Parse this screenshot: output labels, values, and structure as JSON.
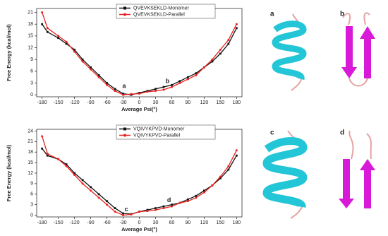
{
  "chart_data": [
    {
      "type": "line",
      "x_label": "Average Psi(°)",
      "y_label": "Free Energy (kcal/mol)",
      "x": [
        -180,
        -170,
        -150,
        -135,
        -120,
        -105,
        -90,
        -75,
        -60,
        -45,
        -30,
        -15,
        0,
        15,
        30,
        45,
        60,
        75,
        90,
        105,
        120,
        135,
        150,
        165,
        180
      ],
      "series": [
        {
          "name": "QVEVKSEKLD-Monomer",
          "color": "#111111",
          "marker": "square",
          "values": [
            18,
            16,
            14.5,
            13,
            11.5,
            9,
            7,
            5,
            3,
            1.5,
            0.3,
            0,
            0.5,
            1,
            1.5,
            2,
            2.5,
            3.5,
            4.5,
            5.5,
            7,
            8.5,
            10.5,
            13,
            17
          ]
        },
        {
          "name": "QVEVKSEKLD-Parallel",
          "color": "#e8211f",
          "marker": "circle",
          "values": [
            21,
            17,
            15,
            13.5,
            11,
            8.5,
            6.5,
            4.5,
            2.5,
            1,
            0,
            0.2,
            0.3,
            0.8,
            1,
            1.3,
            2,
            3,
            4,
            5,
            7,
            9,
            11.5,
            14,
            18
          ]
        }
      ],
      "annotations": [
        "a",
        "b"
      ],
      "xlim": [
        -190,
        190
      ],
      "ylim": [
        -0.5,
        22
      ],
      "xticks": [
        -180,
        -150,
        -120,
        -90,
        -60,
        -30,
        0,
        30,
        60,
        90,
        120,
        150,
        180
      ],
      "yticks": [
        0,
        3,
        6,
        9,
        12,
        15,
        18,
        21
      ]
    },
    {
      "type": "line",
      "x_label": "Average Psi(°)",
      "y_label": "Free Energy (kcal/mol)",
      "x": [
        -180,
        -170,
        -150,
        -135,
        -120,
        -105,
        -90,
        -75,
        -60,
        -45,
        -30,
        -15,
        0,
        15,
        30,
        45,
        60,
        75,
        90,
        105,
        120,
        135,
        150,
        165,
        180
      ],
      "series": [
        {
          "name": "VQIVYKPVD-Monomer",
          "color": "#111111",
          "marker": "square",
          "values": [
            19,
            17,
            16,
            14.5,
            12,
            10,
            8,
            6,
            4,
            2,
            0.5,
            0.3,
            1,
            1.5,
            2,
            2.5,
            3,
            3.5,
            4.5,
            5.5,
            7,
            8.5,
            10.5,
            13,
            17
          ]
        },
        {
          "name": "VQIVYKPVD-Parallel",
          "color": "#e8211f",
          "marker": "circle",
          "values": [
            22.5,
            17.5,
            16,
            14,
            11.5,
            9,
            7,
            5,
            3,
            1,
            0,
            0.2,
            1,
            1.2,
            1.5,
            2,
            2.5,
            3.5,
            4,
            5,
            6.5,
            8.5,
            11,
            14,
            18.5
          ]
        }
      ],
      "annotations": [
        "c",
        "d"
      ],
      "xlim": [
        -190,
        190
      ],
      "ylim": [
        -0.5,
        24.5
      ],
      "xticks": [
        -180,
        -150,
        -120,
        -90,
        -60,
        -30,
        0,
        30,
        60,
        90,
        120,
        150,
        180
      ],
      "yticks": [
        0,
        3,
        6,
        9,
        12,
        15,
        18,
        21,
        24
      ]
    }
  ],
  "panel_labels": [
    "a",
    "b",
    "c",
    "d"
  ]
}
